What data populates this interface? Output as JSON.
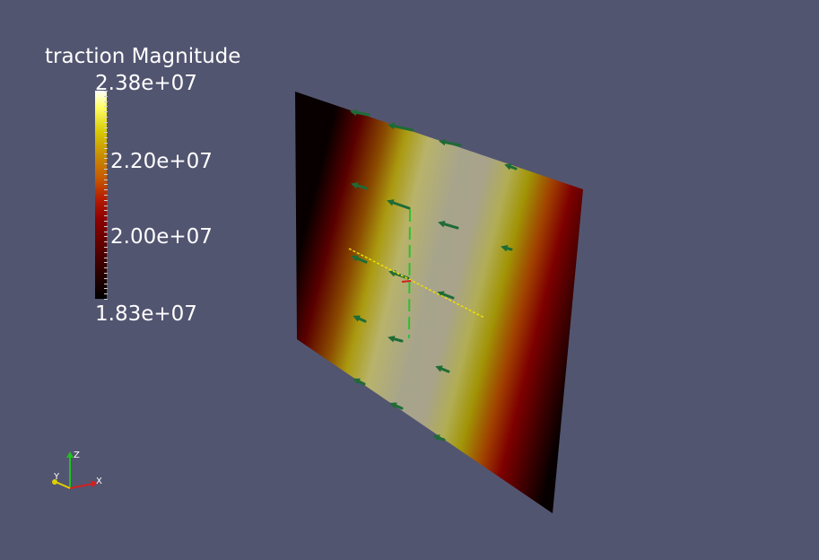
{
  "legend": {
    "title": "traction Magnitude",
    "max_label": "2.38e+07",
    "mid_high_label": "2.20e+07",
    "mid_low_label": "2.00e+07",
    "min_label": "1.83e+07",
    "range": [
      18300000,
      23800000
    ]
  },
  "orientation_axes": {
    "x_label": "X",
    "y_label": "Y",
    "z_label": "Z",
    "colors": {
      "x": "#d02020",
      "y": "#e0d000",
      "z": "#20c020"
    }
  },
  "colors": {
    "background": "#525570",
    "glyphs": "#1f6b36",
    "y_line": "#f0e000",
    "z_line": "#30c030"
  }
}
